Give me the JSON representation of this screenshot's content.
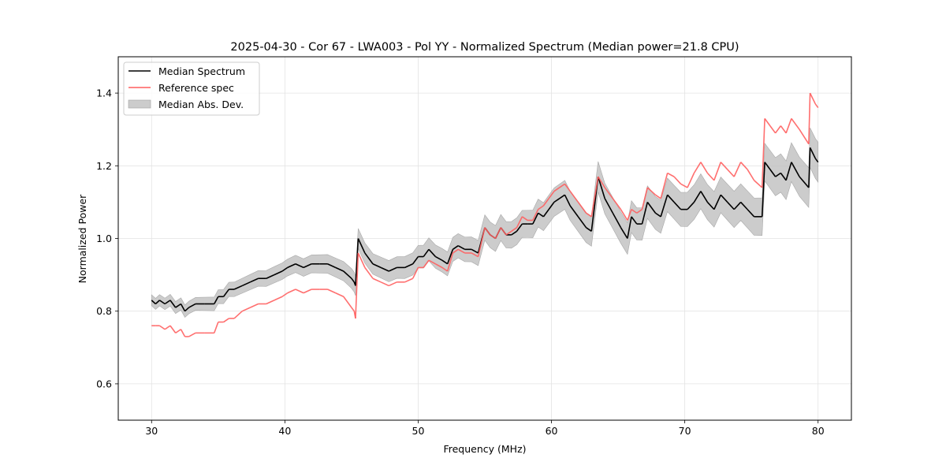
{
  "chart_data": {
    "type": "line",
    "title": "2025-04-30 - Cor 67 - LWA003 - Pol YY - Normalized Spectrum (Median power=21.8 CPU)",
    "xlabel": "Frequency (MHz)",
    "ylabel": "Normalized Power",
    "xlim": [
      27.5,
      82.5
    ],
    "ylim": [
      0.5,
      1.5
    ],
    "xticks": [
      30,
      40,
      50,
      60,
      70,
      80
    ],
    "xtick_labels": [
      "30",
      "40",
      "50",
      "60",
      "70",
      "80"
    ],
    "yticks": [
      0.6,
      0.8,
      1.0,
      1.2,
      1.4
    ],
    "ytick_labels": [
      "0.6",
      "0.8",
      "1.0",
      "1.2",
      "1.4"
    ],
    "grid": true,
    "legend": {
      "placement": "top-left",
      "entries": [
        {
          "label": "Median Spectrum",
          "kind": "line",
          "color": "#000000"
        },
        {
          "label": "Reference spec",
          "kind": "line",
          "color": "#ff5f5f"
        },
        {
          "label": "Median Abs. Dev.",
          "kind": "patch",
          "color": "#bfbfbf"
        }
      ]
    },
    "series": [
      {
        "name": "Median Spectrum",
        "color": "#000000",
        "x": [
          30.0,
          30.3,
          30.6,
          31.0,
          31.4,
          31.8,
          32.2,
          32.5,
          32.8,
          33.3,
          34.0,
          34.7,
          35.0,
          35.4,
          35.8,
          36.2,
          36.8,
          37.4,
          38.0,
          38.6,
          39.2,
          39.8,
          40.2,
          40.8,
          41.4,
          42.0,
          42.6,
          43.2,
          43.8,
          44.4,
          45.0,
          45.2,
          45.3,
          45.5,
          46.0,
          46.6,
          47.2,
          47.8,
          48.4,
          49.0,
          49.6,
          50.0,
          50.4,
          50.8,
          51.3,
          51.8,
          52.2,
          52.6,
          53.0,
          53.5,
          54.0,
          54.5,
          55.0,
          55.4,
          55.8,
          56.2,
          56.6,
          57.0,
          57.4,
          57.8,
          58.2,
          58.6,
          59.0,
          59.4,
          59.8,
          60.2,
          60.6,
          61.0,
          61.4,
          62.0,
          62.6,
          63.0,
          63.5,
          64.0,
          64.6,
          65.2,
          65.7,
          66.0,
          66.4,
          66.8,
          67.2,
          67.8,
          68.2,
          68.7,
          69.2,
          69.7,
          70.2,
          70.7,
          71.2,
          71.7,
          72.2,
          72.7,
          73.2,
          73.7,
          74.2,
          74.7,
          75.2,
          75.8,
          76.0,
          76.4,
          76.8,
          77.2,
          77.6,
          78.0,
          78.6,
          79.3,
          79.4,
          79.8,
          80.0
        ],
        "y": [
          0.83,
          0.82,
          0.83,
          0.82,
          0.83,
          0.81,
          0.82,
          0.8,
          0.81,
          0.82,
          0.82,
          0.82,
          0.84,
          0.84,
          0.86,
          0.86,
          0.87,
          0.88,
          0.89,
          0.89,
          0.9,
          0.91,
          0.92,
          0.93,
          0.92,
          0.93,
          0.93,
          0.93,
          0.92,
          0.91,
          0.89,
          0.88,
          0.87,
          1.0,
          0.96,
          0.93,
          0.92,
          0.91,
          0.92,
          0.92,
          0.93,
          0.95,
          0.95,
          0.97,
          0.95,
          0.94,
          0.93,
          0.97,
          0.98,
          0.97,
          0.97,
          0.96,
          1.03,
          1.01,
          1.0,
          1.03,
          1.01,
          1.01,
          1.02,
          1.04,
          1.04,
          1.04,
          1.07,
          1.06,
          1.08,
          1.1,
          1.11,
          1.12,
          1.09,
          1.06,
          1.03,
          1.02,
          1.17,
          1.11,
          1.07,
          1.03,
          1.0,
          1.06,
          1.04,
          1.04,
          1.1,
          1.07,
          1.06,
          1.12,
          1.1,
          1.08,
          1.08,
          1.1,
          1.13,
          1.1,
          1.08,
          1.12,
          1.1,
          1.08,
          1.1,
          1.08,
          1.06,
          1.06,
          1.21,
          1.19,
          1.17,
          1.18,
          1.16,
          1.21,
          1.17,
          1.14,
          1.25,
          1.22,
          1.21
        ],
        "mad": 0.025
      },
      {
        "name": "Reference spec",
        "color": "#ff5f5f",
        "x": [
          30.0,
          30.3,
          30.6,
          31.0,
          31.4,
          31.8,
          32.2,
          32.5,
          32.8,
          33.3,
          34.0,
          34.7,
          35.0,
          35.4,
          35.8,
          36.2,
          36.8,
          37.4,
          38.0,
          38.6,
          39.2,
          39.8,
          40.2,
          40.8,
          41.4,
          42.0,
          42.6,
          43.2,
          43.8,
          44.4,
          45.0,
          45.2,
          45.3,
          45.5,
          46.0,
          46.6,
          47.2,
          47.8,
          48.4,
          49.0,
          49.6,
          50.0,
          50.4,
          50.8,
          51.3,
          51.8,
          52.2,
          52.6,
          53.0,
          53.5,
          54.0,
          54.5,
          55.0,
          55.4,
          55.8,
          56.2,
          56.6,
          57.0,
          57.4,
          57.8,
          58.2,
          58.6,
          59.0,
          59.4,
          59.8,
          60.2,
          60.6,
          61.0,
          61.4,
          62.0,
          62.6,
          63.0,
          63.5,
          64.0,
          64.6,
          65.2,
          65.7,
          66.0,
          66.4,
          66.8,
          67.2,
          67.8,
          68.2,
          68.7,
          69.2,
          69.7,
          70.2,
          70.7,
          71.2,
          71.7,
          72.2,
          72.7,
          73.2,
          73.7,
          74.2,
          74.7,
          75.2,
          75.8,
          76.0,
          76.4,
          76.8,
          77.2,
          77.6,
          78.0,
          78.6,
          79.3,
          79.4,
          79.8,
          80.0
        ],
        "y": [
          0.76,
          0.76,
          0.76,
          0.75,
          0.76,
          0.74,
          0.75,
          0.73,
          0.73,
          0.74,
          0.74,
          0.74,
          0.77,
          0.77,
          0.78,
          0.78,
          0.8,
          0.81,
          0.82,
          0.82,
          0.83,
          0.84,
          0.85,
          0.86,
          0.85,
          0.86,
          0.86,
          0.86,
          0.85,
          0.84,
          0.81,
          0.8,
          0.78,
          0.96,
          0.92,
          0.89,
          0.88,
          0.87,
          0.88,
          0.88,
          0.89,
          0.92,
          0.92,
          0.94,
          0.93,
          0.92,
          0.91,
          0.96,
          0.97,
          0.96,
          0.96,
          0.95,
          1.03,
          1.01,
          1.0,
          1.03,
          1.01,
          1.02,
          1.03,
          1.06,
          1.05,
          1.05,
          1.08,
          1.09,
          1.11,
          1.13,
          1.14,
          1.15,
          1.13,
          1.1,
          1.07,
          1.06,
          1.17,
          1.14,
          1.11,
          1.08,
          1.05,
          1.08,
          1.07,
          1.08,
          1.14,
          1.12,
          1.11,
          1.18,
          1.17,
          1.15,
          1.14,
          1.18,
          1.21,
          1.18,
          1.16,
          1.21,
          1.19,
          1.17,
          1.21,
          1.19,
          1.16,
          1.14,
          1.33,
          1.31,
          1.29,
          1.31,
          1.29,
          1.33,
          1.3,
          1.26,
          1.4,
          1.37,
          1.36
        ]
      }
    ]
  }
}
